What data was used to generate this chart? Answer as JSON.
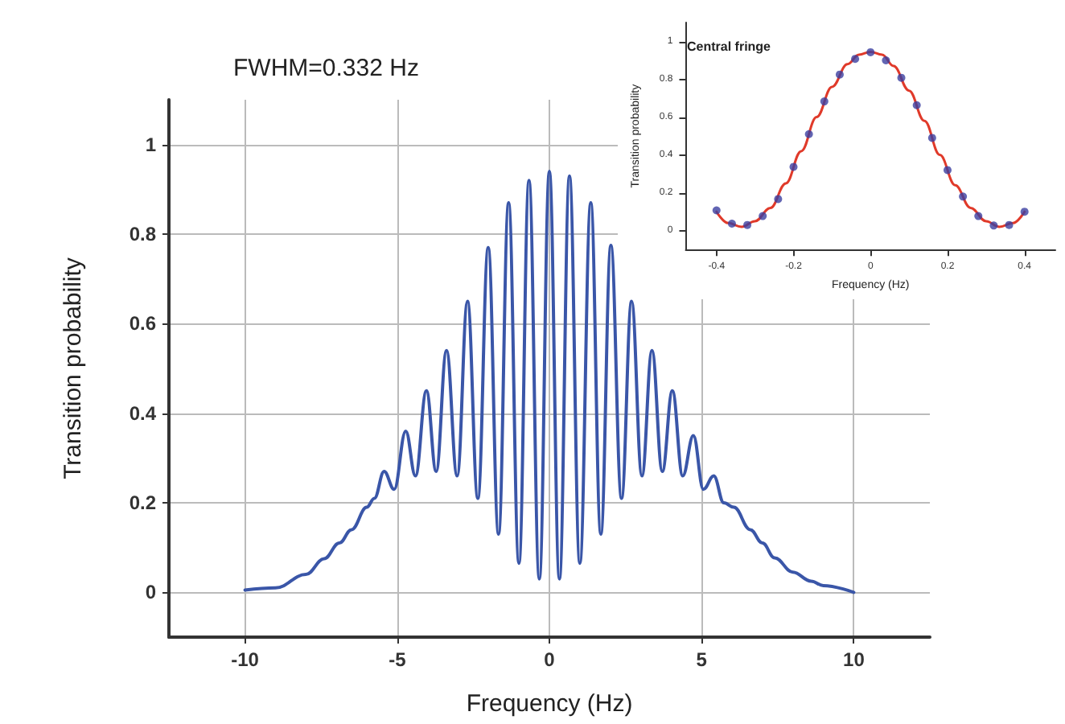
{
  "chart_data": [
    {
      "type": "line",
      "title": "FWHM=0.332 Hz",
      "xlabel": "Frequency (Hz)",
      "ylabel": "Transition probability",
      "xlim": [
        -12.5,
        12.5
      ],
      "xticks": [
        -10,
        -5,
        0,
        5,
        10
      ],
      "ylim": [
        -0.1,
        1.1
      ],
      "yticks": [
        0,
        0.2,
        0.4,
        0.6,
        0.8,
        1
      ],
      "grid": true,
      "marker": "none",
      "line_style": "solid",
      "series": [
        {
          "color": "#3a56a8",
          "x": [
            -10,
            -9,
            -8,
            -7.4,
            -6.9,
            -6.5,
            -6.0,
            -5.75,
            -5.43,
            -5.1,
            -4.72,
            -4.4,
            -4.04,
            -3.72,
            -3.38,
            -3.03,
            -2.69,
            -2.35,
            -2.01,
            -1.67,
            -1.34,
            -1.0,
            -0.67,
            -0.33,
            0,
            0.33,
            0.66,
            1.0,
            1.36,
            1.69,
            2.02,
            2.37,
            2.7,
            3.04,
            3.37,
            3.71,
            4.04,
            4.38,
            4.73,
            5.06,
            5.4,
            5.73,
            6.06,
            6.6,
            7.0,
            7.4,
            8.0,
            8.6,
            9.0,
            10
          ],
          "values": [
            0.005,
            0.01,
            0.04,
            0.075,
            0.11,
            0.14,
            0.19,
            0.21,
            0.27,
            0.23,
            0.36,
            0.26,
            0.45,
            0.27,
            0.54,
            0.26,
            0.65,
            0.21,
            0.77,
            0.13,
            0.87,
            0.065,
            0.92,
            0.03,
            0.94,
            0.03,
            0.93,
            0.065,
            0.87,
            0.13,
            0.775,
            0.21,
            0.65,
            0.26,
            0.54,
            0.27,
            0.45,
            0.26,
            0.35,
            0.23,
            0.26,
            0.2,
            0.19,
            0.14,
            0.11,
            0.077,
            0.045,
            0.025,
            0.015,
            0
          ]
        }
      ]
    },
    {
      "type": "line",
      "title": "Central fringe",
      "xlabel": "Frequency (Hz)",
      "ylabel": "Transition probability",
      "xlim": [
        -0.48,
        0.48
      ],
      "xticks": [
        -0.4,
        -0.2,
        0,
        0.2,
        0.4
      ],
      "ylim": [
        -0.1,
        1.1
      ],
      "yticks": [
        0,
        0.2,
        0.4,
        0.6,
        0.8,
        1
      ],
      "grid": false,
      "series": [
        {
          "marker": "none",
          "color": "#e03a2a",
          "x": [
            -0.4,
            -0.37,
            -0.335,
            -0.3,
            -0.26,
            -0.22,
            -0.18,
            -0.14,
            -0.1,
            -0.06,
            -0.03,
            0,
            0.03,
            0.06,
            0.1,
            0.14,
            0.18,
            0.22,
            0.26,
            0.3,
            0.335,
            0.37,
            0.4
          ],
          "values": [
            0.1,
            0.04,
            0.02,
            0.05,
            0.12,
            0.25,
            0.42,
            0.6,
            0.76,
            0.88,
            0.93,
            0.945,
            0.93,
            0.87,
            0.74,
            0.58,
            0.4,
            0.24,
            0.12,
            0.05,
            0.02,
            0.04,
            0.1
          ]
        },
        {
          "type": "scatter",
          "marker": "circle",
          "color": "#3b3fa0",
          "x": [
            -0.4,
            -0.36,
            -0.32,
            -0.28,
            -0.24,
            -0.2,
            -0.16,
            -0.12,
            -0.08,
            -0.04,
            0,
            0.04,
            0.08,
            0.12,
            0.16,
            0.2,
            0.24,
            0.28,
            0.32,
            0.36,
            0.4
          ],
          "values": [
            0.107,
            0.037,
            0.03,
            0.077,
            0.167,
            0.337,
            0.51,
            0.683,
            0.825,
            0.908,
            0.943,
            0.9,
            0.808,
            0.663,
            0.49,
            0.32,
            0.18,
            0.077,
            0.027,
            0.03,
            0.1
          ]
        }
      ]
    }
  ]
}
